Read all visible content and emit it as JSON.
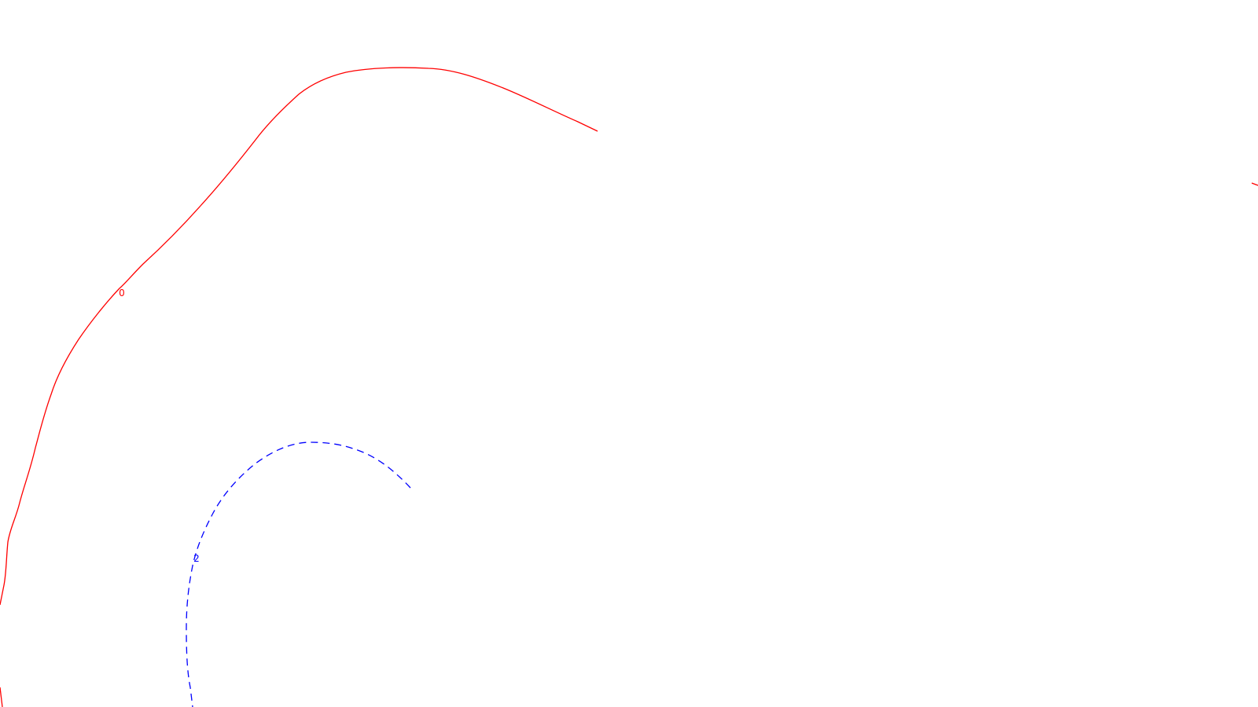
{
  "chart_data": {
    "type": "contour",
    "title": "",
    "xlabel": "",
    "ylabel": "",
    "grid": false,
    "legend": "none",
    "contours": [
      {
        "level_label": "0",
        "color": "#ff0000",
        "line_style": "solid"
      },
      {
        "level_label": "2",
        "color": "#0000ff",
        "line_style": "dashed"
      }
    ]
  }
}
